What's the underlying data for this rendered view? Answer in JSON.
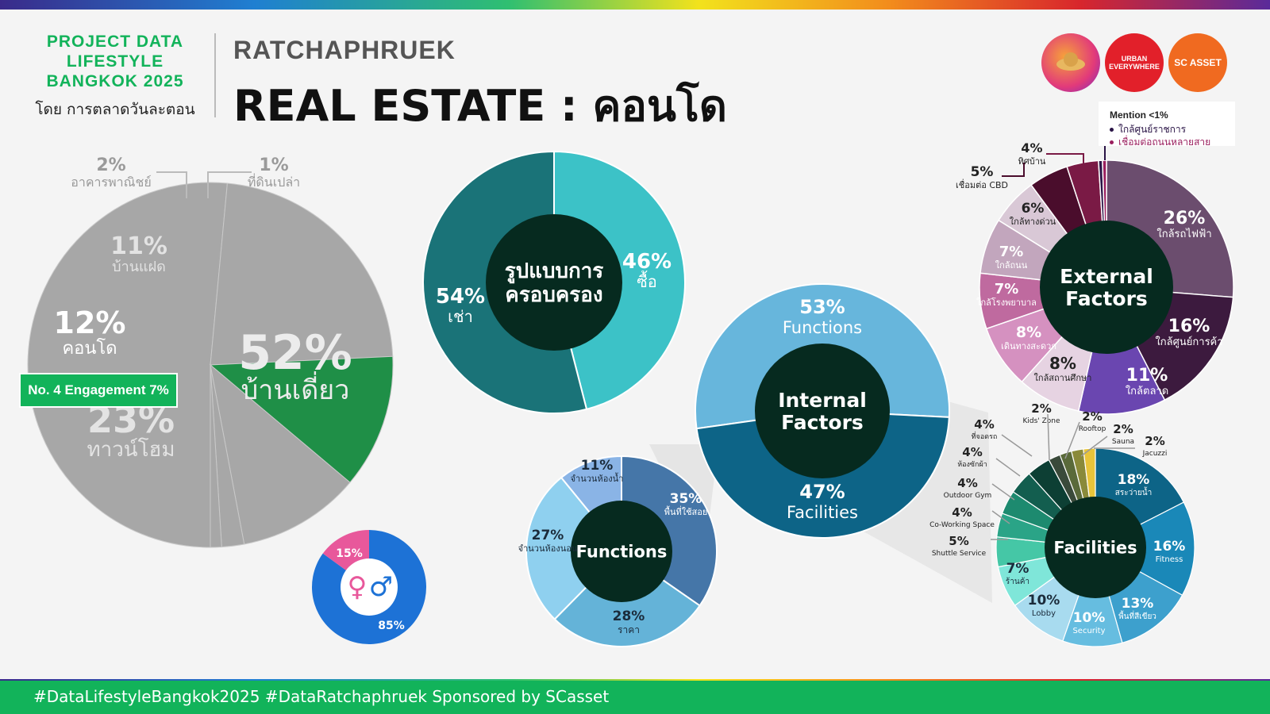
{
  "header": {
    "brand_line1": "PROJECT DATA",
    "brand_line2": "LIFESTYLE",
    "brand_line3": "BANGKOK 2025",
    "brand_sub": "โดย การตลาดวันละตอน",
    "subtitle": "RATCHAPHRUEK",
    "title": "REAL ESTATE : คอนโด"
  },
  "logos": {
    "urban": "URBAN EVERYWHERE",
    "scasset": "SC ASSET"
  },
  "footer": "#DataLifestyleBangkok2025 #DataRatchaphruek Sponsored by SCasset",
  "badge": "No. 4 Engagement 7%",
  "mention": {
    "title": "Mention <1%",
    "items": [
      "ใกล้ศูนย์ราชการ",
      "เชื่อมต่อถนนหลายสาย"
    ],
    "colors": [
      "#2a1446",
      "#9a1f5e"
    ]
  },
  "chart_data": [
    {
      "type": "pie",
      "id": "property-type",
      "slices": [
        {
          "label": "บ้านเดี่ยว",
          "value": 52,
          "color": "#a7a7a7"
        },
        {
          "label": "ทาวน์โฮม",
          "value": 23,
          "color": "#a7a7a7"
        },
        {
          "label": "คอนโด",
          "value": 12,
          "color": "#1f8f47"
        },
        {
          "label": "บ้านแฝด",
          "value": 11,
          "color": "#a7a7a7"
        },
        {
          "label": "อาคารพาณิชย์",
          "value": 2,
          "color": "#a7a7a7"
        },
        {
          "label": "ที่ดินเปล่า",
          "value": 1,
          "color": "#a7a7a7"
        }
      ]
    },
    {
      "type": "pie",
      "id": "ownership",
      "center_label": "รูปแบบการ ครอบครอง",
      "slices": [
        {
          "label": "ซื้อ",
          "value": 46,
          "color": "#3cc2c7"
        },
        {
          "label": "เช่า",
          "value": 54,
          "color": "#1a7378"
        }
      ]
    },
    {
      "type": "pie",
      "id": "internal-factors",
      "center_label": "Internal Factors",
      "slices": [
        {
          "label": "Functions",
          "value": 53,
          "color": "#67b6dc"
        },
        {
          "label": "Facilities",
          "value": 47,
          "color": "#0d6487"
        }
      ]
    },
    {
      "type": "pie",
      "id": "functions",
      "center_label": "Functions",
      "slices": [
        {
          "label": "พื้นที่ใช้สอย",
          "value": 35,
          "color": "#4576a8"
        },
        {
          "label": "ราคา",
          "value": 28,
          "color": "#64b3d8"
        },
        {
          "label": "จำนวนห้องนอน",
          "value": 27,
          "color": "#8fd0ef"
        },
        {
          "label": "จำนวนห้องน้ำ",
          "value": 11,
          "color": "#8ab4e6"
        }
      ]
    },
    {
      "type": "pie",
      "id": "gender",
      "slices": [
        {
          "label": "ชาย",
          "value": 85,
          "color": "#1d72d6"
        },
        {
          "label": "หญิง",
          "value": 15,
          "color": "#e8589b"
        }
      ]
    },
    {
      "type": "pie",
      "id": "external-factors",
      "center_label": "External Factors",
      "slices": [
        {
          "label": "ใกล้รถไฟฟ้า",
          "value": 26,
          "color": "#6b4d6e"
        },
        {
          "label": "ใกล้ศูนย์การค้า",
          "value": 16,
          "color": "#3c1a3e"
        },
        {
          "label": "ใกล้ตลาด",
          "value": 11,
          "color": "#6a46b0"
        },
        {
          "label": "ใกล้สถานศึกษา",
          "value": 8,
          "color": "#e6d3e2"
        },
        {
          "label": "เดินทางสะดวก",
          "value": 8,
          "color": "#d591c0"
        },
        {
          "label": "ใกล้โรงพยาบาล",
          "value": 7,
          "color": "#bf6a9f"
        },
        {
          "label": "ใกล้ถนน",
          "value": 7,
          "color": "#c2a6bd"
        },
        {
          "label": "ใกล้ทางด่วน",
          "value": 6,
          "color": "#d9c8d6"
        },
        {
          "label": "เชื่อมต่อ CBD",
          "value": 5,
          "color": "#4a0d2c"
        },
        {
          "label": "ทิศบ้าน",
          "value": 4,
          "color": "#7a1a45"
        },
        {
          "label": "ใกล้ศูนย์ราชการ",
          "value": 0.5,
          "color": "#2a1446"
        },
        {
          "label": "เชื่อมต่อถนนหลายสาย",
          "value": 0.5,
          "color": "#9a1f5e"
        }
      ]
    },
    {
      "type": "pie",
      "id": "facilities",
      "center_label": "Facilities",
      "slices": [
        {
          "label": "สระว่ายน้ำ",
          "value": 18,
          "color": "#0d6487"
        },
        {
          "label": "Fitness",
          "value": 16,
          "color": "#1a88b8"
        },
        {
          "label": "พื้นที่สีเขียว",
          "value": 13,
          "color": "#3da0cd"
        },
        {
          "label": "Security",
          "value": 10,
          "color": "#66bde0"
        },
        {
          "label": "Lobby",
          "value": 10,
          "color": "#a8dbef"
        },
        {
          "label": "ร้านค้า",
          "value": 7,
          "color": "#7fe6d9"
        },
        {
          "label": "Shuttle Service",
          "value": 5,
          "color": "#45c7a6"
        },
        {
          "label": "Co-Working Space",
          "value": 4,
          "color": "#2aa487"
        },
        {
          "label": "Outdoor Gym",
          "value": 4,
          "color": "#1d8a6f"
        },
        {
          "label": "ห้องซักผ้า",
          "value": 4,
          "color": "#135e4f"
        },
        {
          "label": "ที่จอดรถ",
          "value": 4,
          "color": "#0d3f34"
        },
        {
          "label": "Kids' Zone",
          "value": 2,
          "color": "#3a4a3a"
        },
        {
          "label": "Rooftop",
          "value": 2,
          "color": "#5a6a3a"
        },
        {
          "label": "Sauna",
          "value": 2,
          "color": "#8a8a3a"
        },
        {
          "label": "Jacuzzi",
          "value": 2,
          "color": "#e8c43a"
        }
      ]
    }
  ]
}
